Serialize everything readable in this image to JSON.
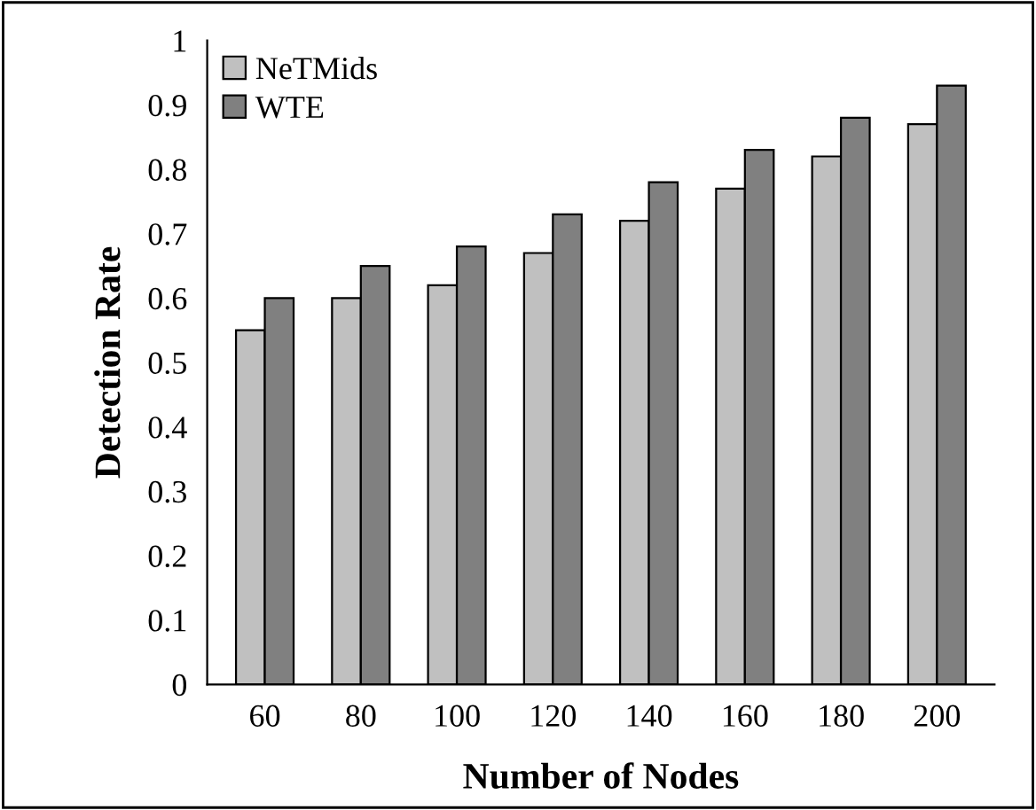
{
  "chart_data": {
    "type": "bar",
    "xlabel": "Number of Nodes",
    "ylabel": "Detection Rate",
    "categories": [
      "60",
      "80",
      "100",
      "120",
      "140",
      "160",
      "180",
      "200"
    ],
    "series": [
      {
        "name": "NeTMids",
        "color": "#c0c0c0",
        "values": [
          0.55,
          0.6,
          0.62,
          0.67,
          0.72,
          0.77,
          0.82,
          0.87
        ]
      },
      {
        "name": "WTE",
        "color": "#808080",
        "values": [
          0.6,
          0.65,
          0.68,
          0.73,
          0.78,
          0.83,
          0.88,
          0.93
        ]
      }
    ],
    "ylim": [
      0,
      1
    ],
    "yticks": [
      0,
      0.1,
      0.2,
      0.3,
      0.4,
      0.5,
      0.6,
      0.7,
      0.8,
      0.9,
      1
    ],
    "grid": false,
    "legend": "top left"
  }
}
